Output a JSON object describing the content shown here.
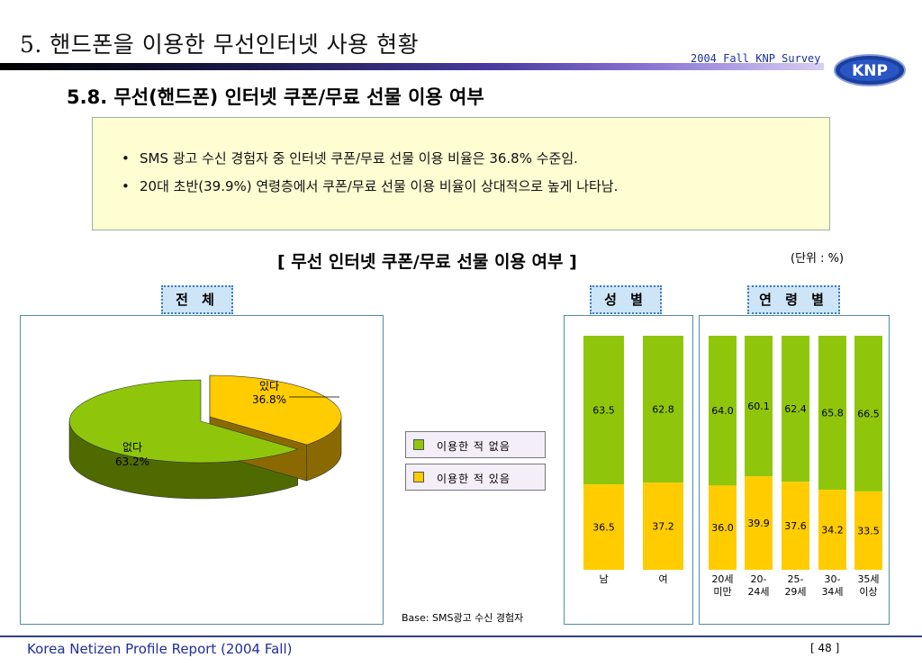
{
  "header": {
    "title": "5. 핸드폰을 이용한 무선인터넷 사용 현황",
    "survey": "2004 Fall KNP Survey",
    "logo": "KNP",
    "section": "5.8.  무선(핸드폰) 인터넷 쿠폰/무료 선물 이용 여부"
  },
  "summary": [
    "SMS 광고 수신 경험자 중 인터넷 쿠폰/무료 선물 이용 비율은 36.8% 수준임.",
    "20대 초반(39.9%) 연령층에서 쿠폰/무료 선물 이용 비율이 상대적으로 높게 나타남."
  ],
  "chart_title": "[ 무선 인터넷 쿠폰/무료 선물 이용 여부 ]",
  "unit": "(단위 : %)",
  "tags": {
    "total": "전 체",
    "gender": "성 별",
    "age": "연 령 별"
  },
  "legend": [
    {
      "label": "이용한 적 없음",
      "color": "#8fc60c"
    },
    {
      "label": "이용한 적 있음",
      "color": "#ffcc00"
    }
  ],
  "base_note": "Base: SMS광고 수신 경험자",
  "footer": {
    "left": "Korea Netizen Profile Report (2004 Fall)",
    "page": "[ 48 ]"
  },
  "colors": {
    "none": "#8fc60c",
    "used": "#ffcc00",
    "none_side": "#4f6b00",
    "used_side": "#8a6a00"
  },
  "chart_data": [
    {
      "type": "pie",
      "labels": [
        "있다",
        "없다"
      ],
      "values": [
        36.8,
        63.2
      ],
      "value_labels": [
        "36.8%",
        "63.2%"
      ]
    },
    {
      "type": "bar",
      "stacked": true,
      "categories": [
        "남",
        "여"
      ],
      "series": [
        {
          "name": "이용한 적 있음",
          "values": [
            36.5,
            37.2
          ]
        },
        {
          "name": "이용한 적 없음",
          "values": [
            63.5,
            62.8
          ]
        }
      ]
    },
    {
      "type": "bar",
      "stacked": true,
      "categories": [
        [
          "20세",
          "미만"
        ],
        [
          "20-",
          "24세"
        ],
        [
          "25-",
          "29세"
        ],
        [
          "30-",
          "34세"
        ],
        [
          "35세",
          "이상"
        ]
      ],
      "series": [
        {
          "name": "이용한 적 있음",
          "values": [
            36.0,
            39.9,
            37.6,
            34.2,
            33.5
          ]
        },
        {
          "name": "이용한 적 없음",
          "values": [
            64.0,
            60.1,
            62.4,
            65.8,
            66.5
          ]
        }
      ]
    }
  ]
}
